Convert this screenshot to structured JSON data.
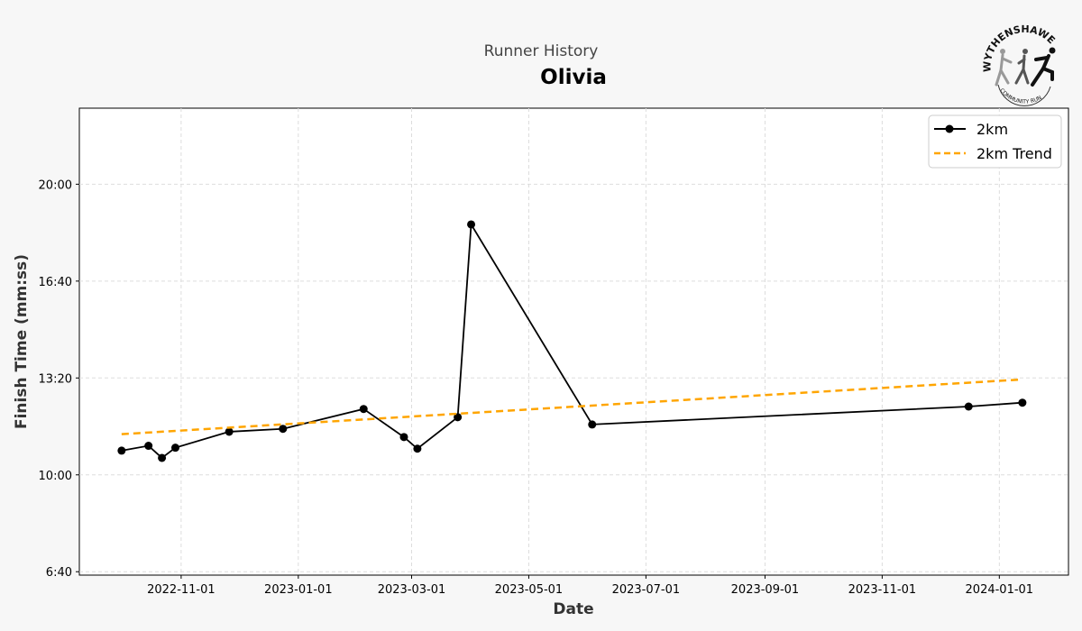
{
  "header": {
    "subtitle": "Runner History",
    "title": "Olivia",
    "logo_text": "WYTHENSHAWE COMMUNITY RUN"
  },
  "chart_data": {
    "type": "line",
    "xlabel": "Date",
    "ylabel": "Finish Time (mm:ss)",
    "x_ticks": [
      "2022-11-01",
      "2023-01-01",
      "2023-03-01",
      "2023-05-01",
      "2023-07-01",
      "2023-09-01",
      "2023-11-01",
      "2024-01-01"
    ],
    "y_ticks": [
      "6:40",
      "10:00",
      "13:20",
      "16:40",
      "20:00"
    ],
    "xlim": [
      "2022-09-09",
      "2024-02-06"
    ],
    "ylim": [
      "6:33",
      "22:37"
    ],
    "grid": true,
    "legend_position": "top-right",
    "series": [
      {
        "name": "2km",
        "color": "#000000",
        "style": "solid-with-markers",
        "x": [
          "2022-10-01",
          "2022-10-15",
          "2022-10-22",
          "2022-10-29",
          "2022-11-26",
          "2022-12-24",
          "2023-02-04",
          "2023-02-25",
          "2023-03-04",
          "2023-03-25",
          "2023-04-01",
          "2023-06-03",
          "2023-12-16",
          "2024-01-13"
        ],
        "y": [
          "10:50",
          "11:00",
          "10:35",
          "10:56",
          "11:29",
          "11:35",
          "12:16",
          "11:18",
          "10:54",
          "11:59",
          "18:37",
          "11:44",
          "12:21",
          "12:29"
        ]
      },
      {
        "name": "2km Trend",
        "color": "#FFA500",
        "style": "dashed",
        "x": [
          "2022-10-01",
          "2024-01-13"
        ],
        "y": [
          "11:24",
          "13:17"
        ]
      }
    ]
  }
}
